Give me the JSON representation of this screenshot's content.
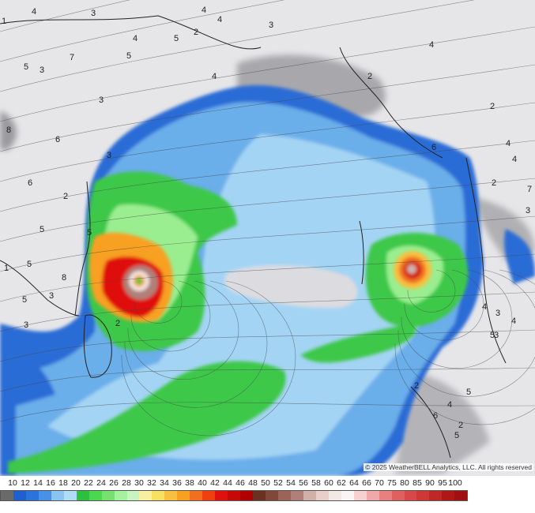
{
  "map": {
    "copyright": "© 2025 WeatherBELL Analytics, LLC. All rights reserved",
    "contour_labels": [
      "4",
      "3",
      "4",
      "4",
      "5",
      "2",
      "4",
      "3",
      "4",
      "3",
      "5",
      "7",
      "5",
      "4",
      "3",
      "8",
      "6",
      "3",
      "2",
      "6",
      "5",
      "5",
      "5",
      "8",
      "1",
      "5",
      "3",
      "3",
      "2",
      "6",
      "2",
      "4",
      "2",
      "4",
      "7",
      "3",
      "3",
      "5",
      "4",
      "4",
      "3",
      "5",
      "2",
      "4",
      "6",
      "5",
      "2",
      "2",
      "1"
    ],
    "storms": [
      "left-cyclone",
      "right-cyclone"
    ]
  },
  "colorbar": {
    "labels": [
      "10",
      "12",
      "14",
      "16",
      "18",
      "20",
      "22",
      "24",
      "26",
      "28",
      "30",
      "32",
      "34",
      "36",
      "38",
      "40",
      "42",
      "44",
      "46",
      "48",
      "50",
      "52",
      "54",
      "56",
      "58",
      "60",
      "62",
      "64",
      "66",
      "70",
      "75",
      "80",
      "85",
      "90",
      "95",
      "100"
    ],
    "colors": [
      "#6a6a6a",
      "#1f5fd0",
      "#2a72dc",
      "#4a90e6",
      "#8cc4f0",
      "#b0dcf6",
      "#2cc040",
      "#4ad850",
      "#78e070",
      "#a6f0a0",
      "#c8f4c0",
      "#f8f0a0",
      "#f8e060",
      "#f8c040",
      "#f8a020",
      "#f07020",
      "#f04010",
      "#e01010",
      "#c80808",
      "#b00000",
      "#6a3020",
      "#804838",
      "#9a6458",
      "#b08078",
      "#d0b0a8",
      "#e8d0c8",
      "#f4e8e4",
      "#fbf4f4",
      "#f8d0d0",
      "#f0a8a8",
      "#e88080",
      "#e06060",
      "#d84848",
      "#d03838",
      "#c02828",
      "#b01818",
      "#a01010"
    ]
  }
}
